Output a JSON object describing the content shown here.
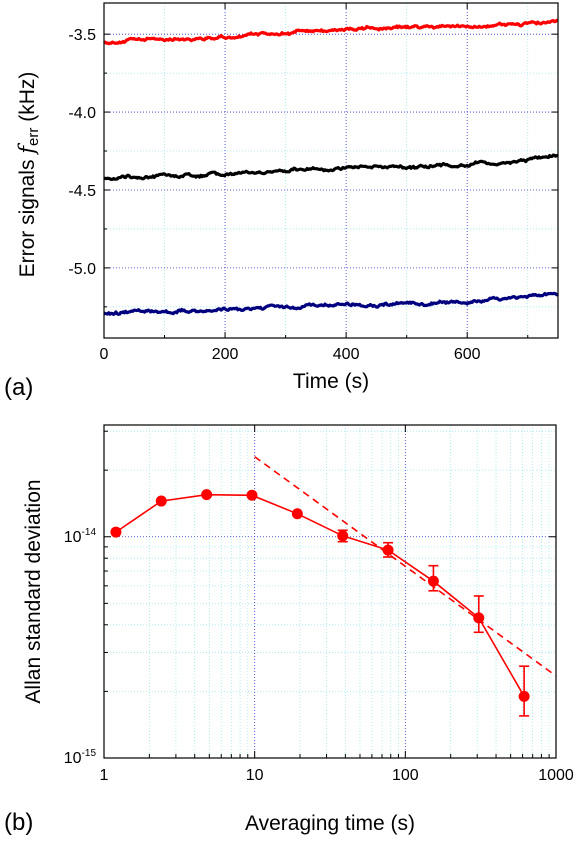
{
  "chart_data": [
    {
      "panel_label": "(a)",
      "type": "line",
      "xlabel": "Time (s)",
      "ylabel_main": "Error signals ",
      "ylabel_italic": "f",
      "ylabel_sub": "err",
      "ylabel_unit": " (kHz)",
      "xlim": [
        0,
        750
      ],
      "ylim": [
        -5.45,
        -3.3
      ],
      "x_ticks": [
        0,
        200,
        400,
        600
      ],
      "y_ticks": [
        -3.5,
        -4.0,
        -4.5,
        -5.0
      ],
      "y_tick_labels": [
        "-3.5",
        "-4.0",
        "-4.5",
        "-5.0"
      ],
      "grid": true,
      "series": [
        {
          "color": "#ff0000",
          "x": [
            0,
            100,
            200,
            300,
            400,
            500,
            600,
            700,
            750
          ],
          "y": [
            -3.55,
            -3.53,
            -3.52,
            -3.49,
            -3.47,
            -3.46,
            -3.45,
            -3.43,
            -3.42
          ]
        },
        {
          "color": "#000000",
          "x": [
            0,
            100,
            200,
            300,
            400,
            500,
            600,
            700,
            750
          ],
          "y": [
            -4.42,
            -4.41,
            -4.4,
            -4.38,
            -4.36,
            -4.35,
            -4.34,
            -4.31,
            -4.29
          ]
        },
        {
          "color": "#00007f",
          "x": [
            0,
            100,
            200,
            300,
            400,
            500,
            600,
            700,
            750
          ],
          "y": [
            -5.29,
            -5.28,
            -5.27,
            -5.25,
            -5.24,
            -5.23,
            -5.22,
            -5.19,
            -5.17
          ]
        }
      ]
    },
    {
      "panel_label": "(b)",
      "type": "scatter",
      "xlabel": "Averaging time (s)",
      "ylabel": "Allan standard deviation",
      "x_scale": "log",
      "y_scale": "log",
      "xlim": [
        1,
        1000
      ],
      "ylim": [
        1e-15,
        3.2e-14
      ],
      "x_ticks": [
        1,
        10,
        100,
        1000
      ],
      "x_tick_labels": [
        "1",
        "10",
        "100",
        "1000"
      ],
      "y_ticks": [
        {
          "value": 1e-14,
          "base": "10",
          "exp": "-14"
        },
        {
          "value": 1e-15,
          "base": "10",
          "exp": "-15"
        }
      ],
      "grid": true,
      "series": [
        {
          "color": "#ff0000",
          "x": [
            1.2,
            2.4,
            4.8,
            9.6,
            19.2,
            38.4,
            76.8,
            153.6,
            307.2,
            614.4
          ],
          "y": [
            1.05e-14,
            1.45e-14,
            1.55e-14,
            1.54e-14,
            1.27e-14,
            1.01e-14,
            8.7e-15,
            6.3e-15,
            4.3e-15,
            1.9e-15
          ],
          "err_low": [
            0,
            0,
            0,
            0,
            0,
            6e-16,
            6e-16,
            6e-16,
            6e-16,
            3.5e-16
          ],
          "err_high": [
            0,
            0,
            0,
            0,
            0,
            6e-16,
            7e-16,
            1.1e-15,
            1.1e-15,
            7e-16
          ]
        }
      ],
      "fit_line": {
        "color": "#ff0000",
        "style": "dashed",
        "x": [
          10,
          1000
        ],
        "y": [
          2.3e-14,
          2.35e-15
        ]
      }
    }
  ]
}
